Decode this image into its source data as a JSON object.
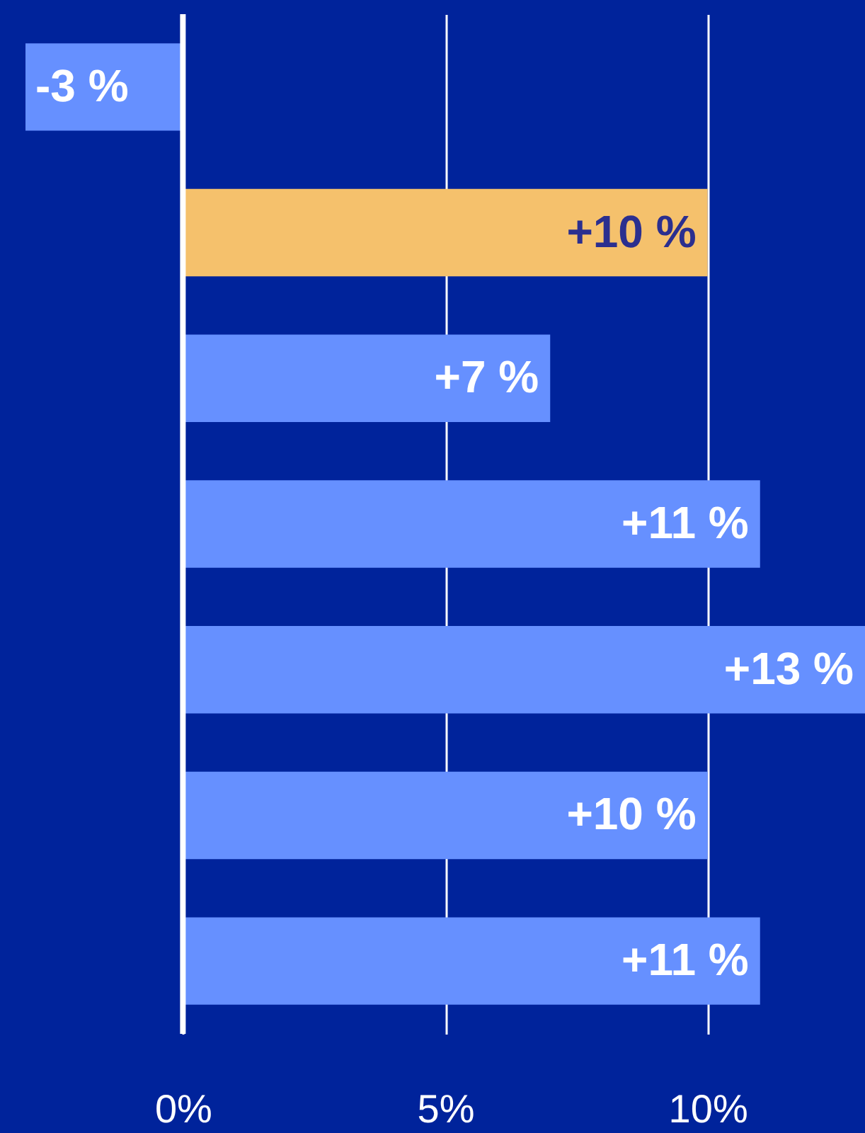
{
  "chart_data": {
    "type": "bar",
    "orientation": "horizontal",
    "categories": [
      null,
      null,
      null,
      null,
      null,
      null,
      null
    ],
    "values": [
      -3,
      10,
      7,
      11,
      13,
      10,
      11
    ],
    "colors": [
      "#6690ff",
      "#f5c16c",
      "#6690ff",
      "#6690ff",
      "#6690ff",
      "#6690ff",
      "#6690ff"
    ],
    "value_labels": [
      "-3 %",
      "+10 %",
      "+7 %",
      "+11 %",
      "+13 %",
      "+10 %",
      "+11 %"
    ],
    "xlim": [
      -3,
      13
    ],
    "xticks": [
      {
        "value": 0,
        "label": "0%"
      },
      {
        "value": 5,
        "label": "5%"
      },
      {
        "value": 10,
        "label": "10%"
      }
    ],
    "grid": "x",
    "ref_lines": [
      {
        "axis": "x",
        "value": 0,
        "color": "#ffffff"
      }
    ]
  }
}
